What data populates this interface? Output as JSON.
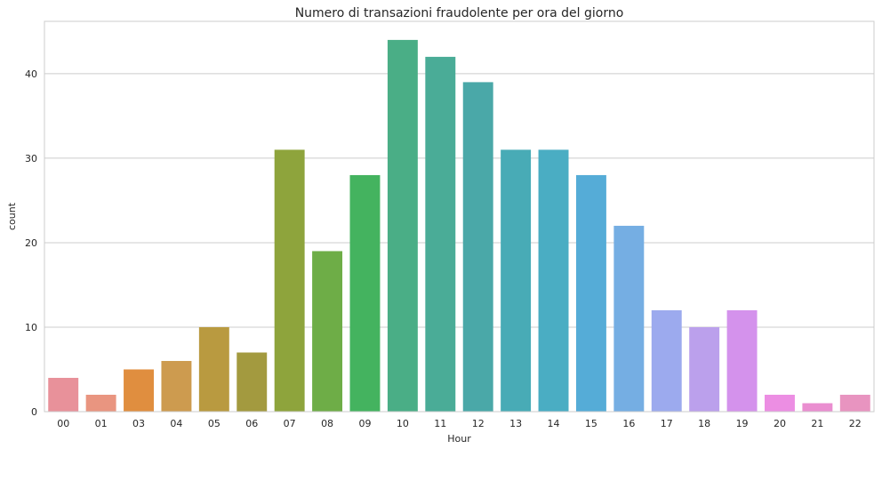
{
  "chart_data": {
    "type": "bar",
    "title": "Numero di transazioni fraudolente per ora del giorno",
    "xlabel": "Hour",
    "ylabel": "count",
    "categories": [
      "00",
      "01",
      "03",
      "04",
      "05",
      "06",
      "07",
      "08",
      "09",
      "10",
      "11",
      "12",
      "13",
      "14",
      "15",
      "16",
      "17",
      "18",
      "19",
      "20",
      "21",
      "22"
    ],
    "values": [
      4,
      2,
      5,
      6,
      10,
      7,
      31,
      19,
      28,
      44,
      42,
      39,
      31,
      31,
      28,
      22,
      12,
      10,
      12,
      2,
      1,
      2
    ],
    "colors": [
      "#e8919a",
      "#e99580",
      "#e08e3f",
      "#cd9b4f",
      "#b99a40",
      "#a39a3f",
      "#8ea43c",
      "#6ead47",
      "#44b35f",
      "#4aae86",
      "#4aac97",
      "#4aa8a8",
      "#48abb6",
      "#4aadc3",
      "#55acd7",
      "#75aee3",
      "#9caaee",
      "#bba0ec",
      "#d492ec",
      "#ec8ee3",
      "#ea8ed0",
      "#e894c0"
    ],
    "yticks": [
      0,
      10,
      20,
      30,
      40
    ],
    "ylim": [
      0,
      46.2
    ],
    "grid": true,
    "background": "#ffffff",
    "grid_color": "#cccccc"
  }
}
